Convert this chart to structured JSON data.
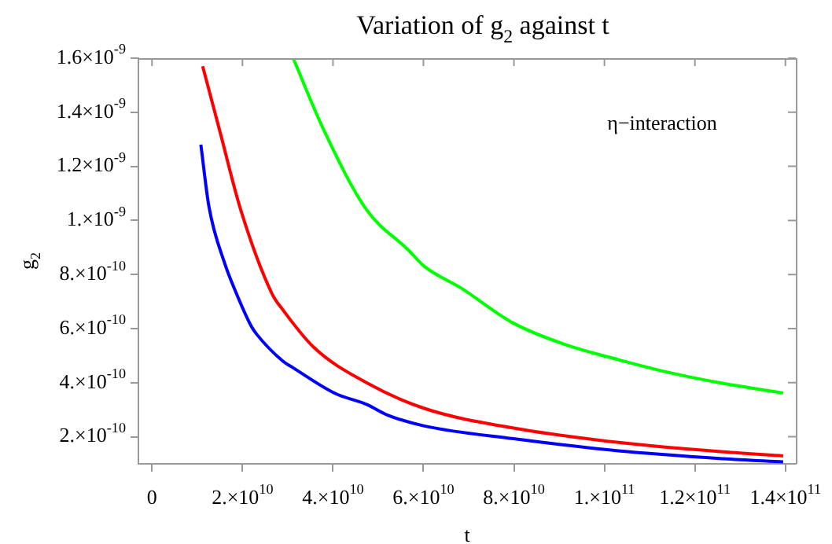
{
  "chart_data": {
    "type": "line",
    "title": "Variation of g$_{2}$ against t",
    "xlabel": "t",
    "ylabel": "g$_{2}$",
    "annotations": [
      "η−interaction"
    ],
    "xlim": [
      -3000000000.0,
      142300000000.0
    ],
    "ylim": [
      1e-10,
      1.6e-09
    ],
    "xticks": [
      0,
      {
        "value": 20000000000.0,
        "label": "2.×10$^{10}$"
      },
      {
        "value": 40000000000.0,
        "label": "4.×10$^{10}$"
      },
      {
        "value": 60000000000.0,
        "label": "6.×10$^{10}$"
      },
      {
        "value": 80000000000.0,
        "label": "8.×10$^{10}$"
      },
      {
        "value": 100000000000.0,
        "label": "1.×10$^{11}$"
      },
      {
        "value": 120000000000.0,
        "label": "1.2×10$^{11}$"
      },
      {
        "value": 140000000000.0,
        "label": "1.4×10$^{11}$"
      }
    ],
    "yticks": [
      {
        "value": 2e-10,
        "label": "2.×10$^{-10}$"
      },
      {
        "value": 4e-10,
        "label": "4.×10$^{-10}$"
      },
      {
        "value": 6e-10,
        "label": "6.×10$^{-10}$"
      },
      {
        "value": 8e-10,
        "label": "8.×10$^{-10}$"
      },
      {
        "value": 1e-09,
        "label": "1.×10$^{-9}$"
      },
      {
        "value": 1.2e-09,
        "label": "1.2×10$^{-9}$"
      },
      {
        "value": 1.4e-09,
        "label": "1.4×10$^{-9}$"
      },
      {
        "value": 1.6e-09,
        "label": "1.6×10$^{-9}$"
      }
    ],
    "grid": false,
    "legend": false,
    "marker": "none",
    "line_style": "solid",
    "series": [
      {
        "color": "#0000ff",
        "x": [
          10800000000.0,
          12600000000.0,
          16100000000.0,
          18400000000.0,
          21900000000.0,
          23100000000.0,
          28900000000.0,
          31200000000.0,
          40500000000.0,
          47400000000.0,
          52100000000.0,
          60200000000.0,
          79900000000.0,
          103100000000.0,
          126300000000.0,
          139500000000.0
        ],
        "values": [
          1.28e-09,
          1.05e-09,
          8.4e-10,
          7.4e-10,
          6.1e-10,
          5.8e-10,
          4.8e-10,
          4.55e-10,
          3.6e-10,
          3.2e-10,
          2.8e-10,
          2.4e-10,
          1.93e-10,
          1.48e-10,
          1.19e-10,
          1.07e-10
        ]
      },
      {
        "color": "#ff0000",
        "x": [
          11200000000.0,
          15000000000.0,
          19600000000.0,
          26500000000.0,
          28900000000.0,
          35800000000.0,
          47400000000.0,
          60200000000.0,
          79900000000.0,
          103100000000.0,
          126300000000.0,
          139500000000.0
        ],
        "values": [
          1.57e-09,
          1.33e-09,
          1.04e-09,
          7.3e-10,
          6.7e-10,
          5.3e-10,
          4e-10,
          3.05e-10,
          2.32e-10,
          1.79e-10,
          1.44e-10,
          1.29e-10
        ]
      },
      {
        "color": "#00ff00",
        "x": [
          31200000000.0,
          38100000000.0,
          47400000000.0,
          56700000000.0,
          60200000000.0,
          68300000000.0,
          79900000000.0,
          91500000000.0,
          103100000000.0,
          114700000000.0,
          126300000000.0,
          139500000000.0
        ],
        "values": [
          1.6e-09,
          1.33e-09,
          1.04e-09,
          8.9e-10,
          8.3e-10,
          7.5e-10,
          6.2e-10,
          5.4e-10,
          4.85e-10,
          4.36e-10,
          3.97e-10,
          3.62e-10
        ]
      }
    ]
  }
}
